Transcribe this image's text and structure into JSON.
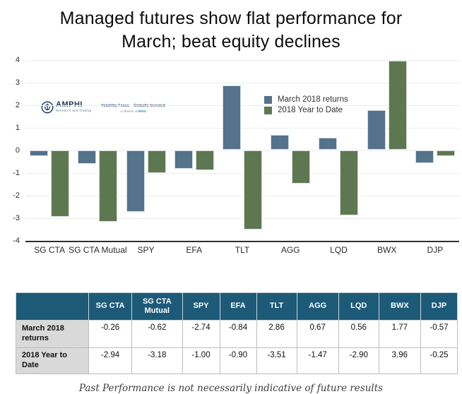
{
  "title": {
    "line1": "Managed futures show flat performance for",
    "line2": "March; beat equity declines"
  },
  "logo": {
    "name": "AMPHI",
    "subtitle": "Research and Trading",
    "tagline": "Volatility Focus – Globally Invested",
    "division_prefix": "A division of",
    "division_brand": "MSIG"
  },
  "chart_data": {
    "type": "bar",
    "categories": [
      "SG CTA",
      "SG CTA Mutual",
      "SPY",
      "EFA",
      "TLT",
      "AGG",
      "LQD",
      "BWX",
      "DJP"
    ],
    "series": [
      {
        "name": "March 2018 returns",
        "color": "#54728c",
        "values": [
          -0.26,
          -0.62,
          -2.74,
          -0.84,
          2.86,
          0.67,
          0.56,
          1.77,
          -0.57
        ]
      },
      {
        "name": "2018 Year to Date",
        "color": "#5d7850",
        "values": [
          -2.94,
          -3.18,
          -1.0,
          -0.9,
          -3.51,
          -1.47,
          -2.9,
          3.96,
          -0.25
        ]
      }
    ],
    "title": "Managed futures show flat performance for March; beat equity declines",
    "xlabel": "",
    "ylabel": "",
    "ylim": [
      -4,
      4
    ],
    "ytick_step": 1,
    "grid": true,
    "legend_position": "inside top-center"
  },
  "table": {
    "columns": [
      "",
      "SG CTA",
      "SG CTA Mutual",
      "SPY",
      "EFA",
      "TLT",
      "AGG",
      "LQD",
      "BWX",
      "DJP"
    ],
    "rows": [
      {
        "label": "March 2018 returns",
        "values": [
          "-0.26",
          "-0.62",
          "-2.74",
          "-0.84",
          "2.86",
          "0.67",
          "0.56",
          "1.77",
          "-0.57"
        ]
      },
      {
        "label": "2018 Year to Date",
        "values": [
          "-2.94",
          "-3.18",
          "-1.00",
          "-0.90",
          "-3.51",
          "-1.47",
          "-2.90",
          "3.96",
          "-0.25"
        ]
      }
    ]
  },
  "footer": {
    "disclaimer": "Past Performance is not necessarily indicative of future results"
  },
  "colors": {
    "bar_blue": "#54728c",
    "bar_green": "#5d7850",
    "table_header_bg": "#1d5a78",
    "row_label_bg": "#d9d9d9",
    "gridline": "#ededed",
    "axis": "#2f2f2f"
  }
}
